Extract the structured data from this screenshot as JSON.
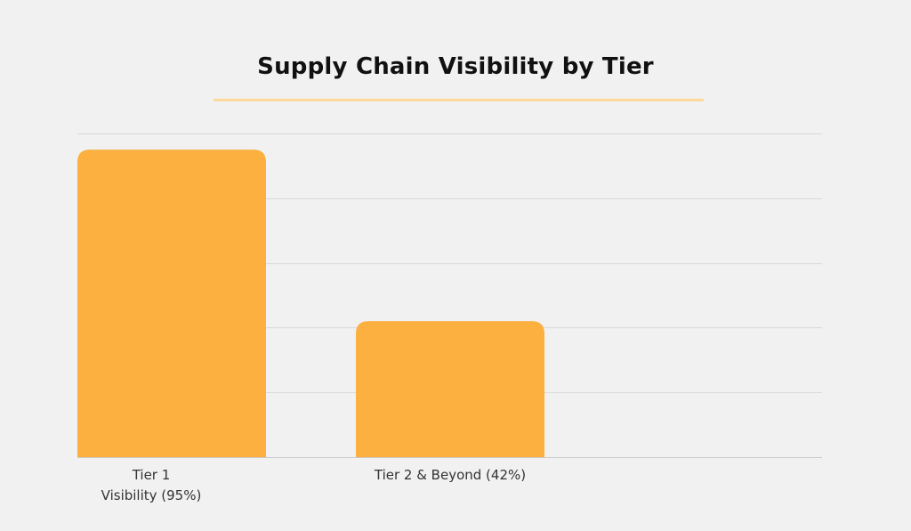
{
  "chart_data": {
    "type": "bar",
    "title": "Supply Chain Visibility by Tier",
    "categories": [
      [
        "Tier 1",
        "Visibility (95%)"
      ],
      [
        "Tier 2 & Beyond (42%)"
      ]
    ],
    "values": [
      95,
      42
    ],
    "unit": "%",
    "xlabel": "",
    "ylabel": "",
    "ylim": [
      0,
      100
    ],
    "grid": true,
    "gridlines": [
      20,
      40,
      60,
      80,
      100
    ],
    "bar_color": "#fbb040",
    "grid_color": "#d9d9d9",
    "underline_color": "#fcd99a"
  }
}
